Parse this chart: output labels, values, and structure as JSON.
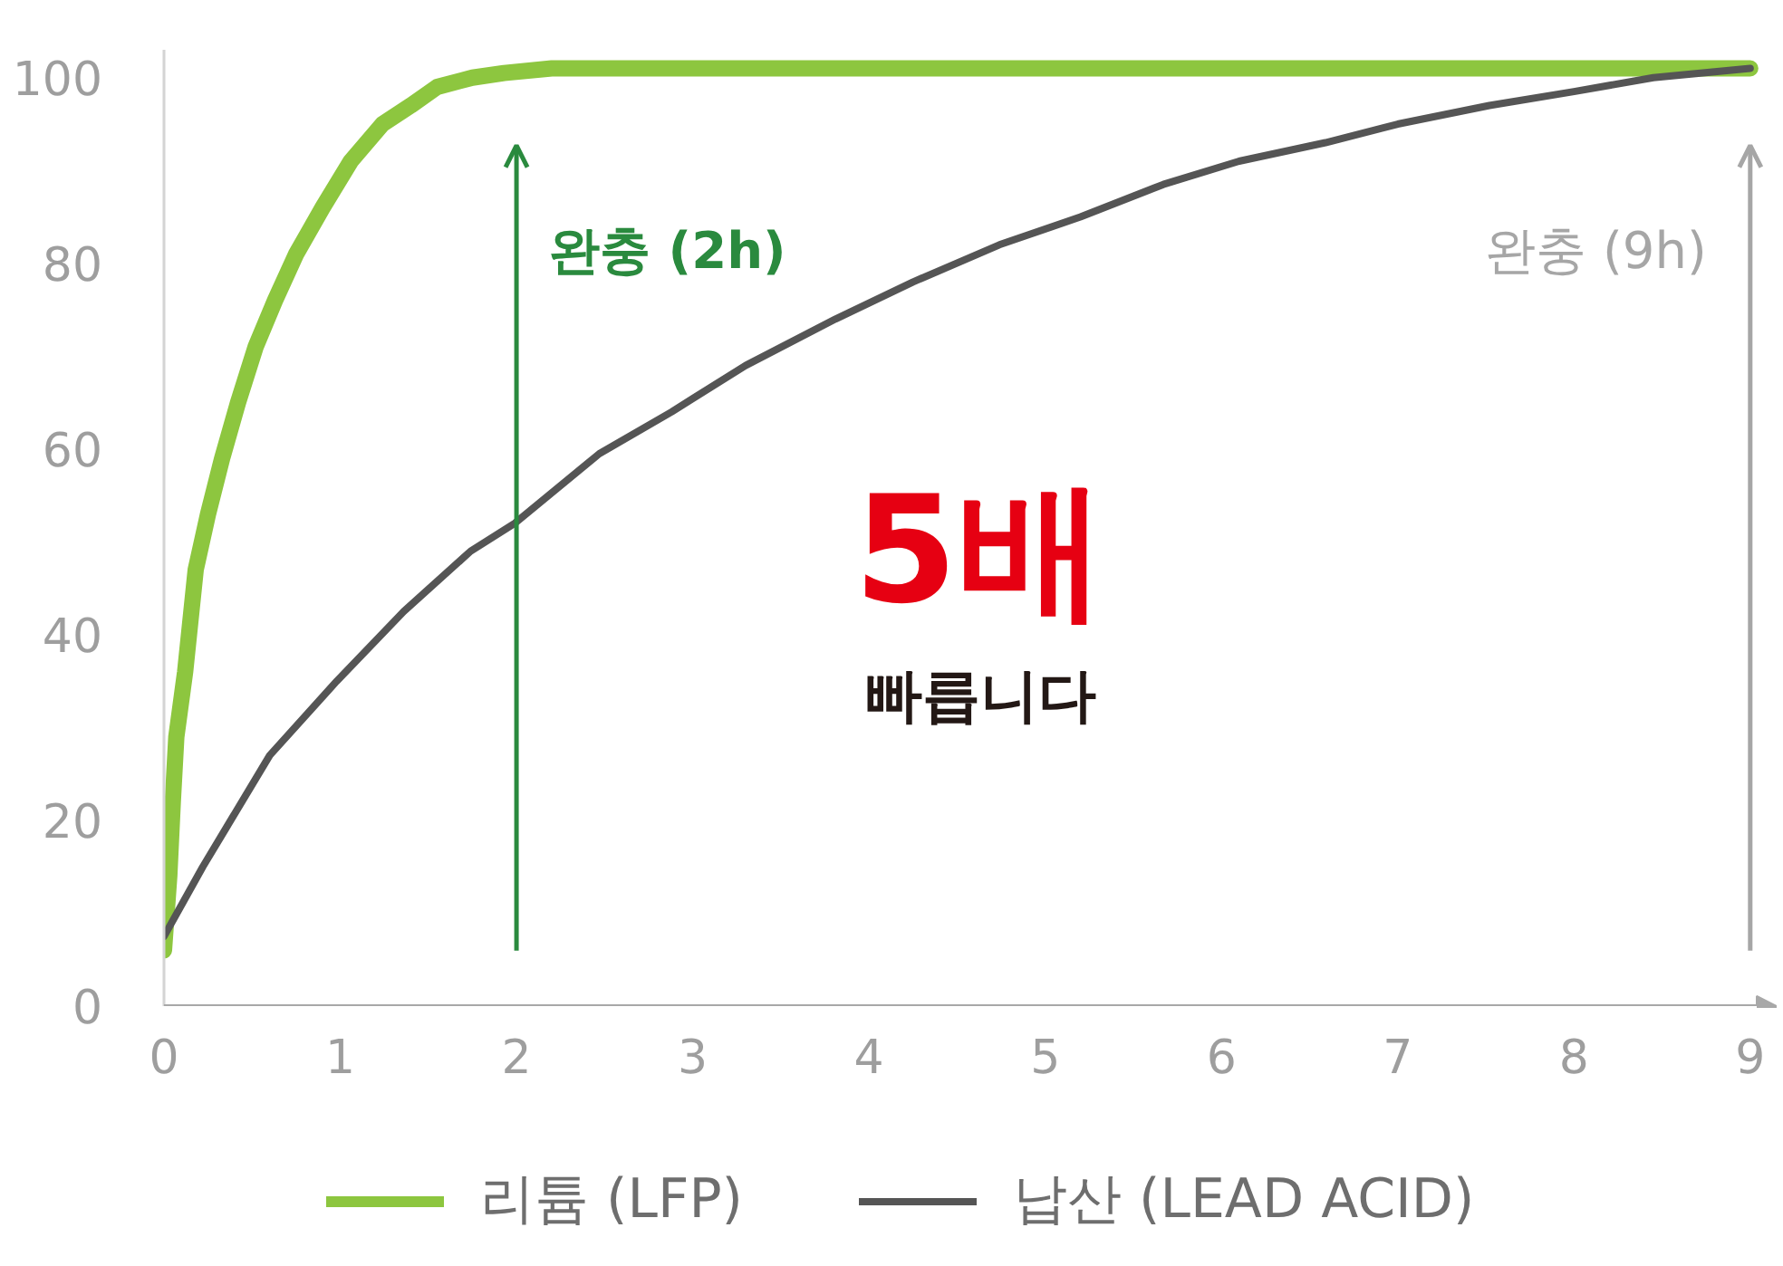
{
  "chart_data": {
    "type": "line",
    "series": [
      {
        "name": "리튬 (LFP)",
        "color": "#8dc63f",
        "x": [
          0,
          0.03,
          0.05,
          0.07,
          0.12,
          0.18,
          0.25,
          0.33,
          0.42,
          0.52,
          0.63,
          0.75,
          0.9,
          1.06,
          1.24,
          1.4,
          1.55,
          1.75,
          1.93,
          2.2,
          2.43,
          3,
          4,
          5,
          6,
          7,
          8,
          9
        ],
        "values": [
          6,
          14,
          22,
          29,
          36,
          47,
          53,
          59,
          65,
          71,
          76,
          81,
          86,
          91,
          95,
          97,
          99,
          100,
          100.5,
          101,
          101,
          101,
          101,
          101,
          101,
          101,
          101,
          101
        ]
      },
      {
        "name": "납산 (LEAD ACID)",
        "color": "#555555",
        "x": [
          0,
          0.22,
          0.6,
          0.98,
          1.36,
          1.74,
          1.99,
          2.47,
          2.88,
          3.3,
          3.81,
          4.25,
          4.74,
          5.2,
          5.67,
          6.1,
          6.59,
          7,
          7.52,
          8,
          8.45,
          9
        ],
        "values": [
          7.5,
          15,
          27,
          35,
          42.5,
          49,
          52,
          59.5,
          64,
          69,
          74,
          78,
          82,
          85,
          88.5,
          91,
          93,
          95,
          97,
          98.5,
          100,
          101
        ]
      }
    ],
    "xlim": [
      0,
      9.15
    ],
    "ylim": [
      0,
      103
    ],
    "xticks": [
      0,
      1,
      2,
      3,
      4,
      5,
      6,
      7,
      8,
      9
    ],
    "yticks": [
      0,
      20,
      40,
      60,
      80,
      100
    ],
    "ref_lines": [
      {
        "axis": "x",
        "value": 2,
        "label": "완충 (2h)",
        "color": "#2a8a3e"
      },
      {
        "axis": "x",
        "value": 9,
        "label": "완충 (9h)",
        "color": "#a6a6a6"
      }
    ],
    "annotations": [
      "5배",
      "빠릅니다"
    ],
    "legend": "bottom",
    "grid": false
  }
}
